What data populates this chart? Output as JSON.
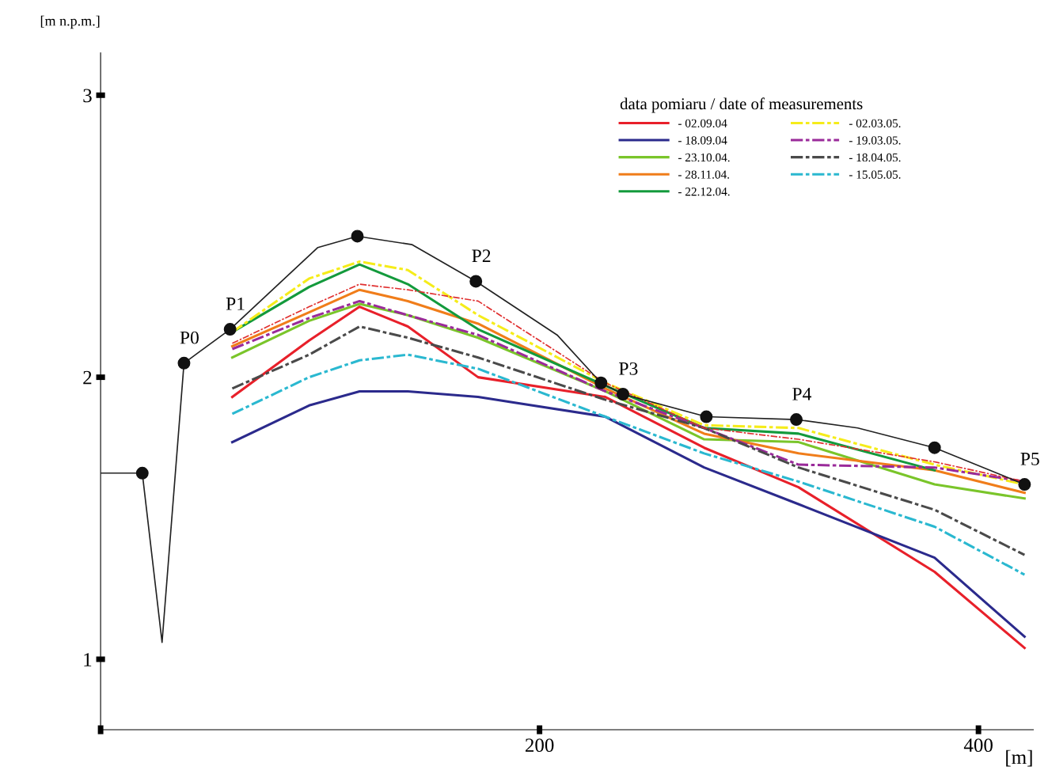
{
  "chart_data": {
    "type": "line",
    "ylabel": "[m n.p.m.]",
    "xlabel": "[m]",
    "legend_title": "data pomiaru / date of measurements",
    "x": [
      60,
      95,
      118,
      140,
      172,
      230,
      275,
      318,
      380,
      421
    ],
    "xlim": [
      0,
      425
    ],
    "xticks": [
      {
        "value": 0,
        "label": null
      },
      200,
      400
    ],
    "ylim": [
      0.75,
      3.15
    ],
    "yticks": [
      1,
      2,
      3
    ],
    "grid": false,
    "legend": "top right",
    "marker": "none",
    "series": [
      {
        "name": "- 02.09.04",
        "color": "#e8202a",
        "line_style": "solid",
        "values": [
          1.93,
          2.13,
          2.25,
          2.18,
          2.0,
          1.93,
          1.75,
          1.61,
          1.31,
          1.04
        ]
      },
      {
        "name": "- 18.09.04",
        "color": "#2b2a8c",
        "line_style": "solid",
        "values": [
          1.77,
          1.9,
          1.95,
          1.95,
          1.93,
          1.86,
          1.68,
          1.55,
          1.36,
          1.08
        ]
      },
      {
        "name": "- 23.10.04.",
        "color": "#7ac52a",
        "line_style": "solid",
        "values": [
          2.07,
          2.2,
          2.26,
          2.22,
          2.14,
          1.95,
          1.78,
          1.77,
          1.62,
          1.57
        ]
      },
      {
        "name": "- 28.11.04.",
        "color": "#f07d1a",
        "line_style": "solid",
        "values": [
          2.11,
          2.23,
          2.31,
          2.27,
          2.19,
          1.96,
          1.8,
          1.73,
          1.67,
          1.59
        ]
      },
      {
        "name": "- 22.12.04.",
        "color": "#139a3c",
        "line_style": "solid",
        "values": [
          2.16,
          2.32,
          2.4,
          2.33,
          2.17,
          1.97,
          1.82,
          1.8,
          1.67,
          null
        ]
      },
      {
        "name": "- 02.03.05.",
        "color": "#f5ec1a",
        "line_style": "dashed",
        "values": [
          2.16,
          2.35,
          2.41,
          2.38,
          2.22,
          1.98,
          1.83,
          1.82,
          1.69,
          1.62
        ]
      },
      {
        "name": "- 19.03.05.",
        "color": "#9a2a9a",
        "line_style": "dashed",
        "values": [
          2.1,
          2.21,
          2.27,
          2.22,
          2.15,
          1.95,
          1.82,
          1.69,
          1.68,
          1.63
        ]
      },
      {
        "name": "- 18.04.05.",
        "color": "#4a4a4a",
        "line_style": "dashed",
        "values": [
          1.96,
          2.08,
          2.18,
          2.14,
          2.07,
          1.92,
          1.82,
          1.68,
          1.53,
          1.37
        ]
      },
      {
        "name": "- 15.05.05.",
        "color": "#2ab8d0",
        "line_style": "dashed",
        "values": [
          1.87,
          2.0,
          2.06,
          2.08,
          2.03,
          1.86,
          1.73,
          1.63,
          1.47,
          1.3
        ]
      },
      {
        "color": "#e03030",
        "line_style": "dashed",
        "values": [
          2.12,
          2.25,
          2.33,
          2.31,
          2.27,
          1.98,
          1.82,
          1.78,
          1.7,
          1.63
        ]
      },
      {
        "color": "#222222",
        "line_style": "solid",
        "marker": "none",
        "x": [
          0,
          19,
          28,
          38,
          59,
          99,
          117,
          142,
          171,
          208,
          228,
          238,
          276,
          317,
          345,
          380,
          421
        ],
        "values": [
          1.66,
          1.66,
          1.06,
          2.05,
          2.17,
          2.46,
          2.5,
          2.47,
          2.34,
          2.15,
          1.98,
          1.94,
          1.86,
          1.85,
          1.82,
          1.75,
          1.62
        ]
      },
      {
        "type": "scatter",
        "color": "#111111",
        "marker": "circle",
        "x": [
          19,
          38,
          59,
          117,
          171,
          228,
          238,
          276,
          317,
          380,
          421
        ],
        "values": [
          1.66,
          2.05,
          2.17,
          2.5,
          2.34,
          1.98,
          1.94,
          1.86,
          1.85,
          1.75,
          1.62
        ]
      }
    ],
    "annotations": [
      {
        "text": "P0",
        "x": 38,
        "y": 2.05
      },
      {
        "text": "P1",
        "x": 59,
        "y": 2.17
      },
      {
        "text": "P2",
        "x": 171,
        "y": 2.34
      },
      {
        "text": "P3",
        "x": 238,
        "y": 1.94
      },
      {
        "text": "P4",
        "x": 317,
        "y": 1.85
      },
      {
        "text": "P5",
        "x": 421,
        "y": 1.62
      }
    ]
  }
}
